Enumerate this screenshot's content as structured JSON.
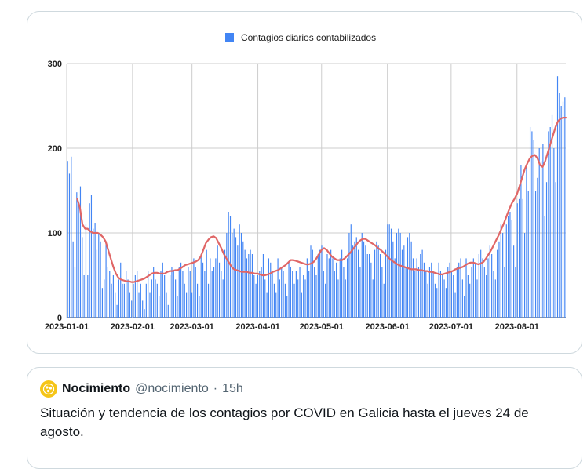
{
  "chart_data": {
    "type": "bar",
    "legend": [
      {
        "label": "Contagios diarios contabilizados",
        "color": "#4285f4"
      }
    ],
    "legend_position": "top-center",
    "trend_color": "#e06666",
    "y_ticks": [
      "0",
      "100",
      "200",
      "300"
    ],
    "ylim": [
      0,
      300
    ],
    "x_ticks": [
      "2023-01-01",
      "2023-02-01",
      "2023-03-01",
      "2023-04-01",
      "2023-05-01",
      "2023-06-01",
      "2023-07-01",
      "2023-08-01"
    ],
    "x_start": "2023-01-01",
    "x_end": "2023-08-24",
    "grid": true,
    "series": [
      {
        "type": "bar",
        "values": [
          185,
          170,
          190,
          90,
          60,
          148,
          135,
          155,
          95,
          50,
          110,
          50,
          135,
          145,
          105,
          112,
          80,
          100,
          90,
          35,
          45,
          90,
          60,
          55,
          40,
          50,
          30,
          15,
          45,
          65,
          40,
          40,
          55,
          45,
          30,
          20,
          40,
          50,
          55,
          30,
          40,
          20,
          10,
          40,
          55,
          30,
          45,
          60,
          45,
          40,
          25,
          55,
          65,
          50,
          30,
          15,
          50,
          60,
          55,
          45,
          25,
          60,
          65,
          55,
          40,
          30,
          60,
          55,
          30,
          70,
          60,
          40,
          25,
          75,
          65,
          55,
          80,
          40,
          70,
          55,
          60,
          70,
          85,
          65,
          55,
          45,
          80,
          100,
          125,
          120,
          100,
          105,
          95,
          85,
          110,
          100,
          90,
          80,
          70,
          75,
          80,
          75,
          50,
          40,
          50,
          55,
          60,
          75,
          45,
          30,
          70,
          65,
          55,
          40,
          30,
          70,
          45,
          60,
          55,
          40,
          25,
          65,
          60,
          55,
          40,
          55,
          45,
          60,
          30,
          50,
          45,
          70,
          55,
          85,
          80,
          60,
          50,
          75,
          80,
          85,
          55,
          40,
          75,
          70,
          80,
          70,
          55,
          65,
          45,
          70,
          80,
          60,
          45,
          70,
          100,
          110,
          85,
          90,
          95,
          80,
          60,
          100,
          90,
          85,
          75,
          75,
          65,
          45,
          80,
          90,
          85,
          75,
          60,
          40,
          80,
          110,
          110,
          105,
          90,
          70,
          100,
          105,
          100,
          80,
          85,
          60,
          95,
          100,
          90,
          70,
          55,
          70,
          60,
          75,
          80,
          65,
          55,
          40,
          60,
          65,
          55,
          40,
          35,
          65,
          55,
          50,
          45,
          35,
          60,
          65,
          55,
          50,
          30,
          60,
          65,
          70,
          45,
          25,
          70,
          50,
          40,
          60,
          70,
          65,
          45,
          75,
          80,
          70,
          60,
          50,
          70,
          85,
          75,
          55,
          45,
          80,
          90,
          110,
          100,
          60,
          110,
          120,
          125,
          115,
          85,
          60,
          135,
          140,
          180,
          140,
          100,
          180,
          150,
          225,
          220,
          210,
          150,
          165,
          200,
          185,
          205,
          120,
          160,
          220,
          225,
          240,
          200,
          160,
          285,
          265,
          250,
          255,
          260
        ]
      },
      {
        "type": "line",
        "values": [
          140,
          130,
          110,
          105,
          105,
          102,
          100,
          100,
          100,
          98,
          95,
          90,
          80,
          70,
          60,
          52,
          47,
          45,
          44,
          43,
          43,
          42,
          42,
          43,
          44,
          45,
          46,
          48,
          50,
          52,
          53,
          53,
          52,
          52,
          52,
          54,
          55,
          55,
          56,
          56,
          58,
          60,
          62,
          63,
          64,
          65,
          66,
          68,
          72,
          80,
          88,
          92,
          95,
          96,
          94,
          88,
          82,
          75,
          70,
          65,
          60,
          57,
          56,
          55,
          54,
          54,
          54,
          53,
          53,
          52,
          52,
          51,
          50,
          50,
          51,
          52,
          54,
          55,
          56,
          58,
          60,
          62,
          65,
          68,
          68,
          67,
          66,
          65,
          64,
          63,
          63,
          64,
          66,
          70,
          75,
          80,
          82,
          80,
          76,
          72,
          70,
          68,
          68,
          68,
          70,
          73,
          76,
          80,
          84,
          88,
          91,
          93,
          93,
          91,
          89,
          87,
          85,
          82,
          80,
          77,
          74,
          71,
          68,
          66,
          64,
          62,
          61,
          60,
          59,
          58,
          57,
          57,
          57,
          56,
          56,
          55,
          55,
          54,
          54,
          53,
          52,
          51,
          51,
          52,
          53,
          54,
          55,
          57,
          58,
          59,
          60,
          62,
          64,
          65,
          65,
          64,
          63,
          64,
          66,
          70,
          75,
          80,
          86,
          92,
          98,
          105,
          112,
          120,
          128,
          135,
          140,
          146,
          155,
          165,
          175,
          182,
          188,
          191,
          192,
          188,
          180,
          178,
          185,
          195,
          205,
          215,
          225,
          232,
          235,
          236,
          236
        ]
      }
    ]
  },
  "quote": {
    "author_name": "Nocimiento",
    "author_handle": "@nocimiento",
    "separator": "·",
    "time": "15h",
    "text": "Situación y tendencia de los contagios por COVID en Galicia hasta el jueves 24 de agosto."
  }
}
